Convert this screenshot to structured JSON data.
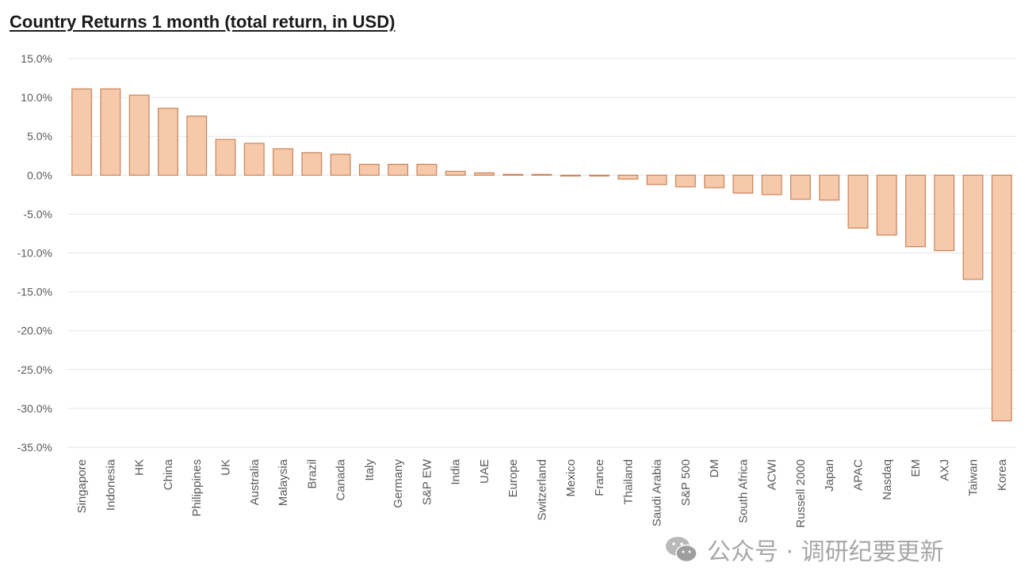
{
  "chart_data": {
    "type": "bar",
    "title": "Country Returns 1 month (total return, in USD)",
    "categories": [
      "Singapore",
      "Indonesia",
      "HK",
      "China",
      "Philippines",
      "UK",
      "Australia",
      "Malaysia",
      "Brazil",
      "Canada",
      "Italy",
      "Germany",
      "S&P EW",
      "India",
      "UAE",
      "Europe",
      "Switzerland",
      "Mexico",
      "France",
      "Thailand",
      "Saudi Arabia",
      "S&P 500",
      "DM",
      "South Africa",
      "ACWI",
      "Russell 2000",
      "Japan",
      "APAC",
      "Nasdaq",
      "EM",
      "AXJ",
      "Taiwan",
      "Korea"
    ],
    "values": [
      11.1,
      11.1,
      10.3,
      8.6,
      7.6,
      4.6,
      4.1,
      3.4,
      2.9,
      2.7,
      1.4,
      1.4,
      1.4,
      0.5,
      0.3,
      0.1,
      0.1,
      -0.1,
      -0.1,
      -0.5,
      -1.2,
      -1.5,
      -1.6,
      -2.3,
      -2.5,
      -3.1,
      -3.2,
      -6.8,
      -7.7,
      -9.2,
      -9.7,
      -13.4,
      -31.6
    ],
    "yticks": [
      "15.0%",
      "10.0%",
      "5.0%",
      "0.0%",
      "-5.0%",
      "-10.0%",
      "-15.0%",
      "-20.0%",
      "-25.0%",
      "-30.0%",
      "-35.0%"
    ],
    "ylim": [
      -35,
      15
    ],
    "xlabel": "",
    "ylabel": "",
    "grid": true,
    "bar_fill": "#f5c9aa",
    "bar_stroke": "#c8835a"
  },
  "watermark": {
    "text": "公众号 · 调研纪要更新",
    "icon": "wechat-icon"
  }
}
